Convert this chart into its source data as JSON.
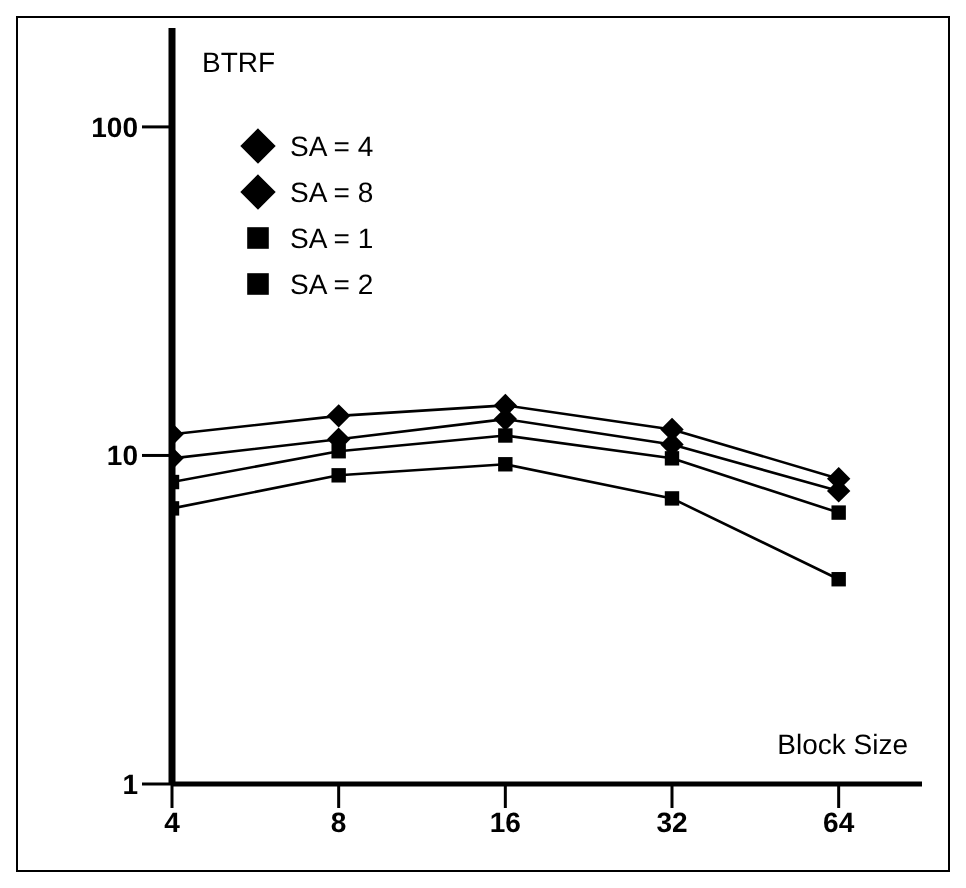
{
  "chart_data": {
    "type": "line",
    "xlabel": "Block Size",
    "ylabel": "BTRF",
    "categories": [
      "4",
      "8",
      "16",
      "32",
      "64"
    ],
    "log": "y",
    "ylim": [
      1,
      200
    ],
    "yticks": [
      1,
      10,
      100
    ],
    "grid": false,
    "legend": "top left",
    "line_style": "solid",
    "series": [
      {
        "name": "SA = 4",
        "color": "#000000",
        "marker": "diamond",
        "values": [
          9.8,
          11.2,
          12.9,
          10.8,
          7.8
        ]
      },
      {
        "name": "SA = 8",
        "color": "#000000",
        "marker": "diamond",
        "values": [
          11.6,
          13.2,
          14.2,
          12.0,
          8.5
        ]
      },
      {
        "name": "SA = 1",
        "color": "#000000",
        "marker": "square",
        "values": [
          6.9,
          8.7,
          9.4,
          7.4,
          4.2
        ]
      },
      {
        "name": "SA = 2",
        "color": "#000000",
        "marker": "square",
        "values": [
          8.3,
          10.3,
          11.5,
          9.8,
          6.7
        ]
      }
    ]
  }
}
